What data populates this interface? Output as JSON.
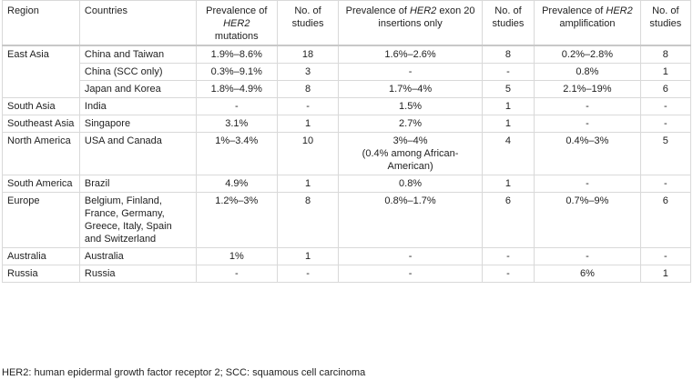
{
  "headers": {
    "region": "Region",
    "countries": "Countries",
    "mutations": "Prevalence of HER2 mutations",
    "n1": "No. of studies",
    "ex20": "Prevalence of HER2 exon 20 insertions only",
    "n2": "No. of studies",
    "amp": "Prevalence of HER2 amplification",
    "n3": "No. of studies"
  },
  "rows": [
    {
      "region": "East Asia",
      "countries": "China and Taiwan",
      "mutations": "1.9%–8.6%",
      "n1": "18",
      "ex20": "1.6%–2.6%",
      "n2": "8",
      "amp": "0.2%–2.8%",
      "n3": "8"
    },
    {
      "region": "",
      "countries": "China (SCC only)",
      "mutations": "0.3%–9.1%",
      "n1": "3",
      "ex20": "-",
      "n2": "-",
      "amp": "0.8%",
      "n3": "1"
    },
    {
      "region": "",
      "countries": "Japan and Korea",
      "mutations": "1.8%–4.9%",
      "n1": "8",
      "ex20": "1.7%–4%",
      "n2": "5",
      "amp": "2.1%–19%",
      "n3": "6"
    },
    {
      "region": "South Asia",
      "countries": "India",
      "mutations": "-",
      "n1": "-",
      "ex20": "1.5%",
      "n2": "1",
      "amp": "-",
      "n3": "-"
    },
    {
      "region": "Southeast Asia",
      "countries": "Singapore",
      "mutations": "3.1%",
      "n1": "1",
      "ex20": "2.7%",
      "n2": "1",
      "amp": "-",
      "n3": "-"
    },
    {
      "region": "North America",
      "countries": "USA and Canada",
      "mutations": "1%–3.4%",
      "n1": "10",
      "ex20": "3%–4%\n(0.4% among African-American)",
      "n2": "4",
      "amp": "0.4%–3%",
      "n3": "5"
    },
    {
      "region": "South America",
      "countries": "Brazil",
      "mutations": "4.9%",
      "n1": "1",
      "ex20": "0.8%",
      "n2": "1",
      "amp": "-",
      "n3": "-"
    },
    {
      "region": "Europe",
      "countries": "Belgium, Finland, France, Germany, Greece, Italy, Spain and Switzerland",
      "mutations": "1.2%–3%",
      "n1": "8",
      "ex20": "0.8%–1.7%",
      "n2": "6",
      "amp": "0.7%–9%",
      "n3": "6"
    },
    {
      "region": "Australia",
      "countries": "Australia",
      "mutations": "1%",
      "n1": "1",
      "ex20": "-",
      "n2": "-",
      "amp": "-",
      "n3": "-"
    },
    {
      "region": "Russia",
      "countries": "Russia",
      "mutations": "-",
      "n1": "-",
      "ex20": "-",
      "n2": "-",
      "amp": "6%",
      "n3": "1"
    }
  ],
  "footnote": "HER2: human epidermal growth factor receptor 2; SCC: squamous cell carcinoma"
}
